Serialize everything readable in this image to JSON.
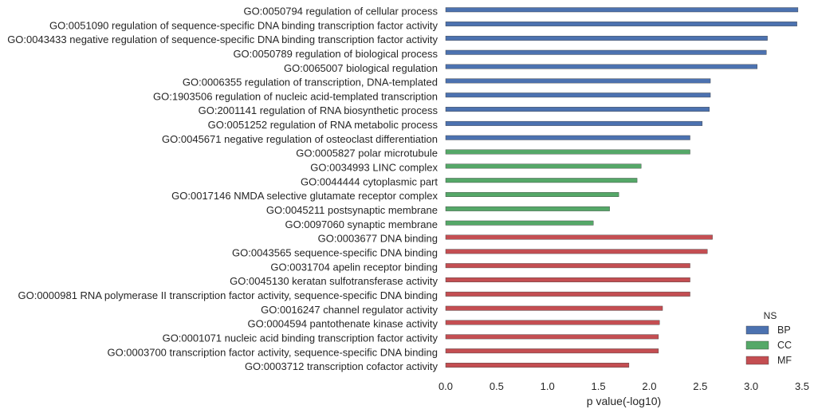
{
  "chart_data": {
    "type": "bar",
    "orientation": "horizontal",
    "xlabel": "p value(-log10)",
    "ylabel": "",
    "xlim": [
      0,
      3.5
    ],
    "x_ticks": [
      "0.0",
      "0.5",
      "1.0",
      "1.5",
      "2.0",
      "2.5",
      "3.0",
      "3.5"
    ],
    "grid": false,
    "legend": {
      "title": "NS",
      "position": "bottom-right",
      "entries": [
        {
          "label": "BP",
          "color": "#4c72b0"
        },
        {
          "label": "CC",
          "color": "#55a868"
        },
        {
          "label": "MF",
          "color": "#c44e52"
        }
      ]
    },
    "bars": [
      {
        "label": "GO:0050794 regulation of cellular process",
        "value": 3.46,
        "group": "BP"
      },
      {
        "label": "GO:0051090 regulation of sequence-specific DNA binding transcription factor activity",
        "value": 3.45,
        "group": "BP"
      },
      {
        "label": "GO:0043433 negative regulation of sequence-specific DNA binding transcription factor activity",
        "value": 3.16,
        "group": "BP"
      },
      {
        "label": "GO:0050789 regulation of biological process",
        "value": 3.15,
        "group": "BP"
      },
      {
        "label": "GO:0065007 biological regulation",
        "value": 3.06,
        "group": "BP"
      },
      {
        "label": "GO:0006355 regulation of transcription, DNA-templated",
        "value": 2.6,
        "group": "BP"
      },
      {
        "label": "GO:1903506 regulation of nucleic acid-templated transcription",
        "value": 2.6,
        "group": "BP"
      },
      {
        "label": "GO:2001141 regulation of RNA biosynthetic process",
        "value": 2.59,
        "group": "BP"
      },
      {
        "label": "GO:0051252 regulation of RNA metabolic process",
        "value": 2.52,
        "group": "BP"
      },
      {
        "label": "GO:0045671 negative regulation of osteoclast differentiation",
        "value": 2.4,
        "group": "BP"
      },
      {
        "label": "GO:0005827 polar microtubule",
        "value": 2.4,
        "group": "CC"
      },
      {
        "label": "GO:0034993 LINC complex",
        "value": 1.92,
        "group": "CC"
      },
      {
        "label": "GO:0044444 cytoplasmic part",
        "value": 1.88,
        "group": "CC"
      },
      {
        "label": "GO:0017146 NMDA selective glutamate receptor complex",
        "value": 1.7,
        "group": "CC"
      },
      {
        "label": "GO:0045211 postsynaptic membrane",
        "value": 1.61,
        "group": "CC"
      },
      {
        "label": "GO:0097060 synaptic membrane",
        "value": 1.45,
        "group": "CC"
      },
      {
        "label": "GO:0003677 DNA binding",
        "value": 2.62,
        "group": "MF"
      },
      {
        "label": "GO:0043565 sequence-specific DNA binding",
        "value": 2.57,
        "group": "MF"
      },
      {
        "label": "GO:0031704 apelin receptor binding",
        "value": 2.4,
        "group": "MF"
      },
      {
        "label": "GO:0045130 keratan sulfotransferase activity",
        "value": 2.4,
        "group": "MF"
      },
      {
        "label": "GO:0000981 RNA polymerase II transcription factor activity, sequence-specific DNA binding",
        "value": 2.4,
        "group": "MF"
      },
      {
        "label": "GO:0016247 channel regulator activity",
        "value": 2.13,
        "group": "MF"
      },
      {
        "label": "GO:0004594 pantothenate kinase activity",
        "value": 2.1,
        "group": "MF"
      },
      {
        "label": "GO:0001071 nucleic acid binding transcription factor activity",
        "value": 2.09,
        "group": "MF"
      },
      {
        "label": "GO:0003700 transcription factor activity, sequence-specific DNA binding",
        "value": 2.09,
        "group": "MF"
      },
      {
        "label": "GO:0003712 transcription cofactor activity",
        "value": 1.8,
        "group": "MF"
      }
    ]
  }
}
